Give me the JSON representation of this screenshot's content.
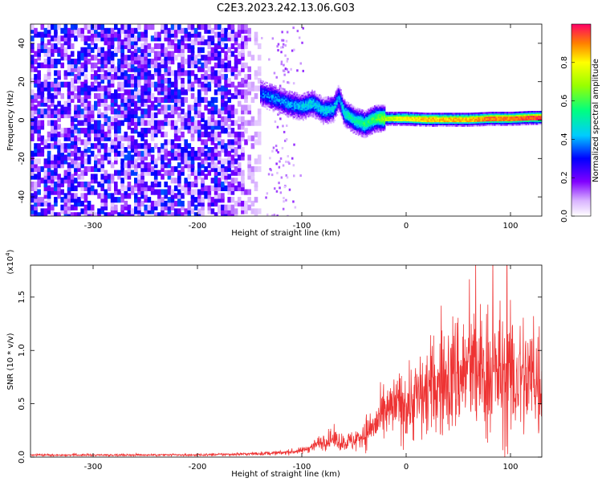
{
  "figure_title": "C2E3.2023.242.13.06.G03",
  "chart_data": [
    {
      "type": "heatmap",
      "title": "C2E3.2023.242.13.06.G03",
      "xlabel": "Height of straight line (km)",
      "ylabel": "Frequency (Hz)",
      "xlim": [
        -360,
        130
      ],
      "ylim": [
        -50,
        50
      ],
      "x_ticks": [
        -300,
        -200,
        -100,
        0,
        100
      ],
      "y_ticks": [
        -40,
        -20,
        0,
        20,
        40
      ],
      "x_tick_labels": [
        "-300",
        "-200",
        "-100",
        "0",
        "100"
      ],
      "y_tick_labels": [
        "-40",
        "-20",
        "0",
        "20",
        "40"
      ],
      "colorbar": {
        "label": "Normalized spectral amplitude",
        "range": [
          0.0,
          1.0
        ],
        "ticks": [
          0.0,
          0.2,
          0.4,
          0.6,
          0.8
        ],
        "tick_labels": [
          "0.0",
          "0.2",
          "0.4",
          "0.6",
          "0.8"
        ],
        "colormap": "rainbow"
      },
      "noise_region": {
        "x_range": [
          -360,
          -140
        ],
        "freq_range": [
          -50,
          50
        ],
        "amplitude_range": [
          0.05,
          0.35
        ]
      },
      "signal_ridge": {
        "x": [
          -140,
          -125,
          -110,
          -100,
          -90,
          -80,
          -70,
          -65,
          -60,
          -50,
          -40,
          -30,
          -20,
          -10,
          0,
          20,
          40,
          60,
          80,
          100,
          120,
          130
        ],
        "center_freq": [
          14,
          11,
          8,
          7,
          9,
          5,
          6,
          12,
          4,
          0,
          -2,
          1,
          1,
          1,
          1,
          0.5,
          0.5,
          0.5,
          1,
          1,
          1.5,
          1.5
        ],
        "amplitude": [
          0.35,
          0.4,
          0.4,
          0.45,
          0.45,
          0.45,
          0.45,
          0.4,
          0.5,
          0.5,
          0.55,
          0.6,
          0.7,
          0.75,
          0.8,
          0.85,
          0.85,
          0.85,
          0.9,
          0.9,
          0.95,
          0.95
        ]
      },
      "annotations": []
    },
    {
      "type": "line",
      "title": "",
      "xlabel": "Height of straight line (km)",
      "ylabel": "SNR (10 * v/v)",
      "y_multiplier": "(x10",
      "y_multiplier_exp": "4",
      "y_multiplier_close": ")",
      "xlim": [
        -360,
        130
      ],
      "ylim": [
        0,
        1.8
      ],
      "x_ticks": [
        -300,
        -200,
        -100,
        0,
        100
      ],
      "y_ticks": [
        0.0,
        0.5,
        1.0,
        1.5
      ],
      "x_tick_labels": [
        "-300",
        "-200",
        "-100",
        "0",
        "100"
      ],
      "y_tick_labels": [
        "0.0",
        "0.5",
        "1.0",
        "1.5"
      ],
      "color": "#ee3333",
      "series": [
        {
          "name": "SNR",
          "envelope_x": [
            -360,
            -200,
            -150,
            -120,
            -100,
            -90,
            -80,
            -70,
            -60,
            -50,
            -40,
            -30,
            -20,
            -10,
            0,
            10,
            20,
            30,
            40,
            50,
            60,
            70,
            80,
            90,
            100,
            110,
            120,
            125,
            130
          ],
          "envelope_mean": [
            0.02,
            0.02,
            0.03,
            0.04,
            0.06,
            0.1,
            0.15,
            0.17,
            0.14,
            0.15,
            0.22,
            0.3,
            0.4,
            0.48,
            0.5,
            0.55,
            0.6,
            0.65,
            0.72,
            0.8,
            0.8,
            0.78,
            0.8,
            0.78,
            0.72,
            0.75,
            0.72,
            0.75,
            0.7
          ],
          "envelope_amp": [
            0.01,
            0.01,
            0.015,
            0.02,
            0.03,
            0.05,
            0.08,
            0.1,
            0.08,
            0.1,
            0.15,
            0.2,
            0.25,
            0.3,
            0.35,
            0.4,
            0.45,
            0.45,
            0.55,
            0.6,
            0.6,
            0.6,
            0.65,
            0.6,
            0.65,
            0.6,
            0.6,
            0.65,
            0.6
          ]
        }
      ]
    }
  ]
}
